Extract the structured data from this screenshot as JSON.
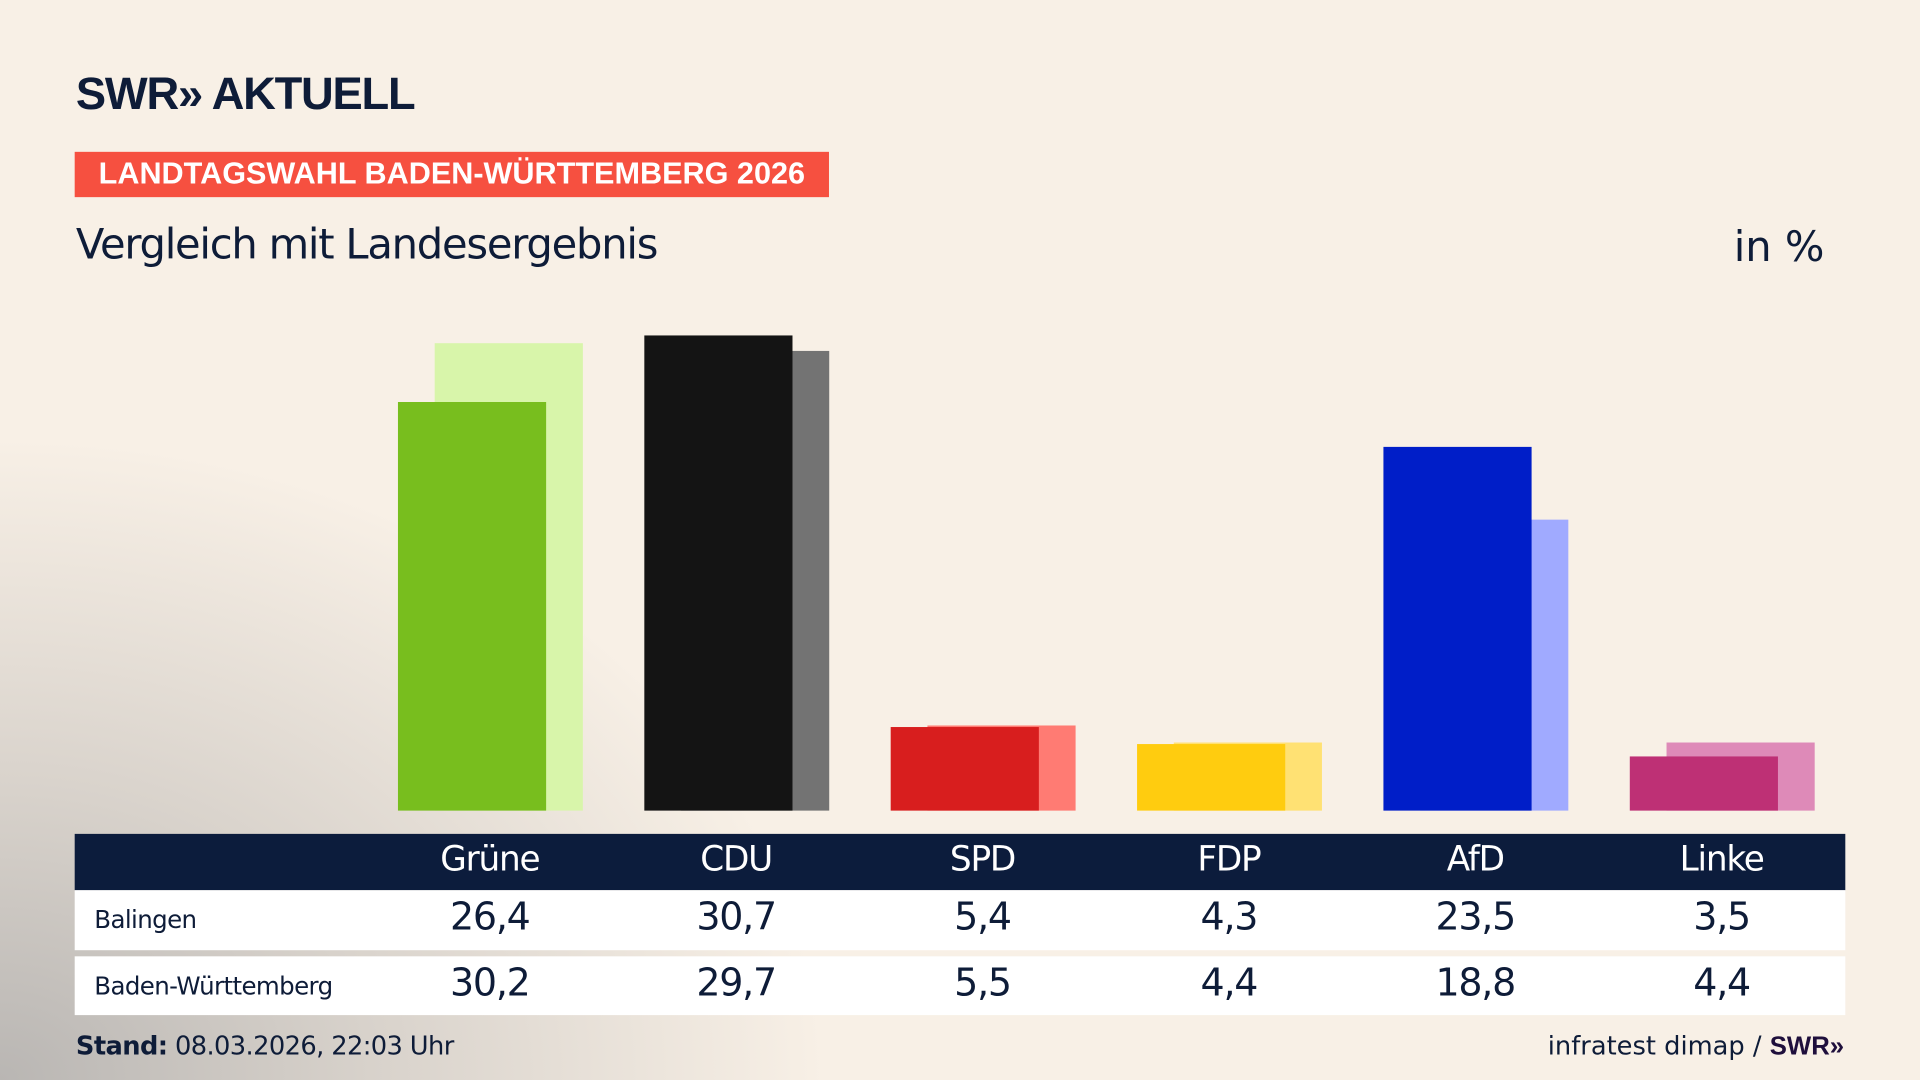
{
  "header": {
    "logo": "SWR» AKTUELL",
    "banner": "LANDTAGSWAHL BADEN-WÜRTTEMBERG 2026",
    "subtitle": "Vergleich mit Landesergebnis",
    "unit": "in %"
  },
  "chart_data": {
    "type": "bar",
    "categories": [
      "Grüne",
      "CDU",
      "SPD",
      "FDP",
      "AfD",
      "Linke"
    ],
    "series": [
      {
        "name": "Balingen",
        "values": [
          26.4,
          30.7,
          5.4,
          4.3,
          23.5,
          3.5
        ],
        "display": [
          "26,4",
          "30,7",
          "5,4",
          "4,3",
          "23,5",
          "3,5"
        ],
        "colors": [
          "#78be1e",
          "#141414",
          "#d81e1e",
          "#ffcc0f",
          "#001ec8",
          "#be3075"
        ]
      },
      {
        "name": "Baden-Württemberg",
        "values": [
          30.2,
          29.7,
          5.5,
          4.4,
          18.8,
          4.4
        ],
        "display": [
          "30,2",
          "29,7",
          "5,5",
          "4,4",
          "18,8",
          "4,4"
        ],
        "colors": [
          "#d8f5aa",
          "#737373",
          "#ff7b73",
          "#ffe173",
          "#a0aaff",
          "#de8ab8"
        ]
      }
    ],
    "ylabel": "in %",
    "grid": false
  },
  "footer": {
    "stand_label": "Stand:",
    "stand_value": " 08.03.2026, 22:03 Uhr",
    "source": "infratest dimap / ",
    "source_logo": "SWR»"
  }
}
